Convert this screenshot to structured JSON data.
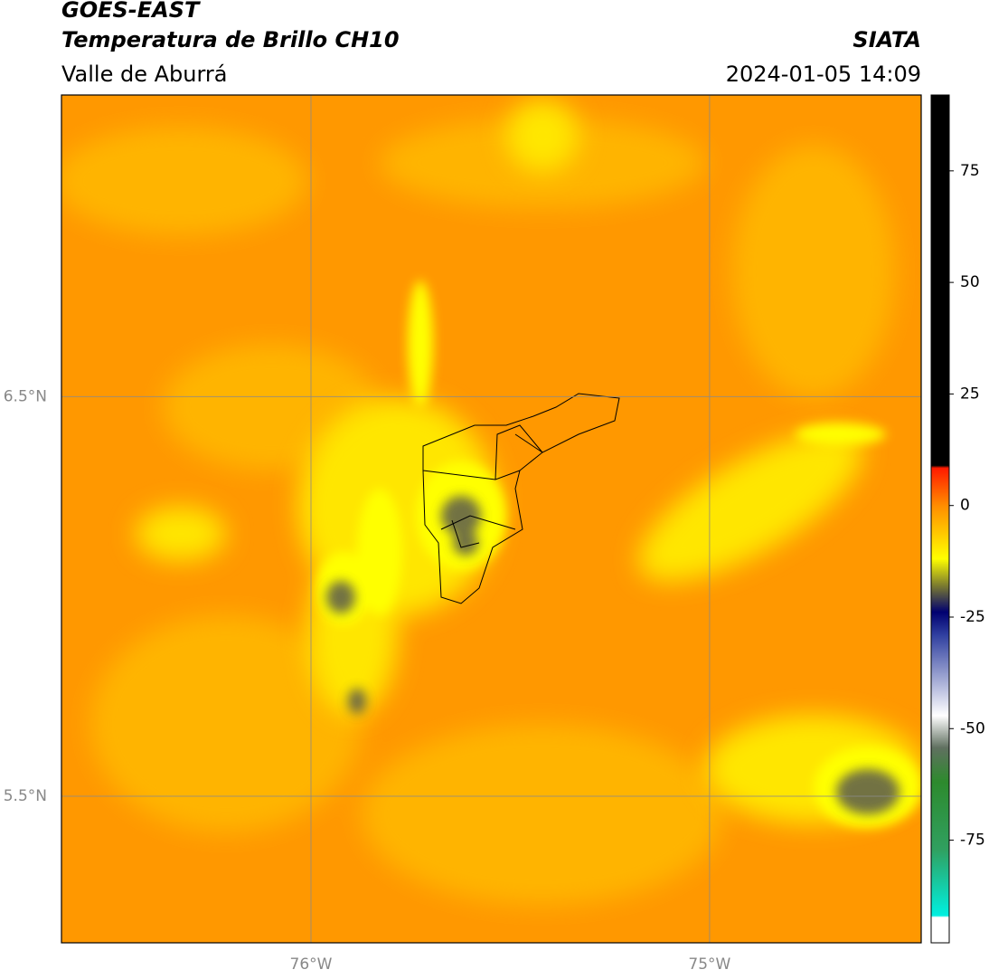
{
  "header": {
    "title": "GOES-EAST",
    "subtitle": "Temperatura de Brillo CH10",
    "region": "Valle de Aburrá",
    "source": "SIATA",
    "datetime": "2024-01-05 14:09"
  },
  "map": {
    "xlim": [
      -76.626,
      -74.469
    ],
    "ylim": [
      5.133,
      7.255
    ],
    "xticks": [
      {
        "value": -76,
        "label": "76°W"
      },
      {
        "value": -75,
        "label": "75°W"
      }
    ],
    "yticks": [
      {
        "value": 6.5,
        "label": "6.5°N"
      },
      {
        "value": 5.5,
        "label": "5.5°N"
      }
    ],
    "grid": true
  },
  "colorbar": {
    "lim": [
      -98,
      92
    ],
    "ticks": [
      75,
      50,
      25,
      0,
      -25,
      -50,
      -75
    ]
  }
}
